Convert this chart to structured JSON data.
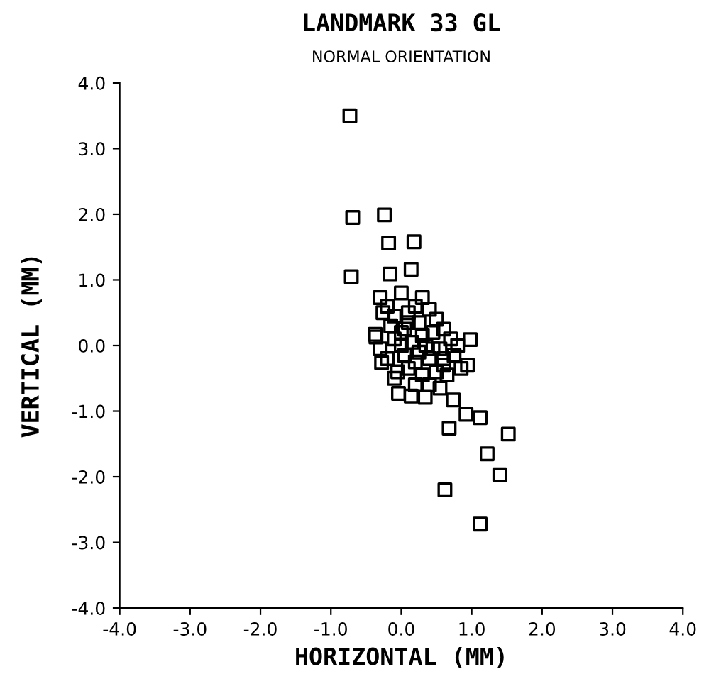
{
  "chart_data": {
    "type": "scatter",
    "title": "LANDMARK 33 GL",
    "subtitle": "NORMAL ORIENTATION",
    "xlabel": "HORIZONTAL (MM)",
    "ylabel": "VERTICAL (MM)",
    "xlim": [
      -4.0,
      4.0
    ],
    "ylim": [
      -4.0,
      4.0
    ],
    "xticks": [
      {
        "value": -4,
        "label": "-4.0"
      },
      {
        "value": -3,
        "label": "-3.0"
      },
      {
        "value": -2,
        "label": "-2.0"
      },
      {
        "value": -1,
        "label": "-1.0"
      },
      {
        "value": 0,
        "label": "0.0"
      },
      {
        "value": 1,
        "label": "1.0"
      },
      {
        "value": 2,
        "label": "2.0"
      },
      {
        "value": 3,
        "label": "3.0"
      },
      {
        "value": 4,
        "label": "4.0"
      }
    ],
    "yticks": [
      {
        "value": -4,
        "label": "-4.0"
      },
      {
        "value": -3,
        "label": "-3.0"
      },
      {
        "value": -2,
        "label": "-2.0"
      },
      {
        "value": -1,
        "label": "-1.0"
      },
      {
        "value": 0,
        "label": "0.0"
      },
      {
        "value": 1,
        "label": "1.0"
      },
      {
        "value": 2,
        "label": "2.0"
      },
      {
        "value": 3,
        "label": "3.0"
      },
      {
        "value": 4,
        "label": "4.0"
      }
    ],
    "marker": "square",
    "grid": false,
    "legend": false,
    "series": [
      {
        "color": "#000000",
        "x": [
          -0.73,
          -0.69,
          -0.24,
          -0.18,
          0.18,
          -0.71,
          -0.16,
          0.14,
          -0.36,
          -0.28,
          -0.04,
          0.14,
          0.34,
          0.74,
          0.68,
          0.92,
          1.12,
          1.52,
          1.22,
          1.4,
          0.62,
          1.12,
          0.98,
          0.94,
          -0.3,
          0.0,
          0.3,
          -0.26,
          -0.37,
          -0.2,
          -0.1,
          0.1,
          0.2,
          0.4,
          0.5,
          -0.15,
          0.05,
          0.25,
          0.45,
          0.6,
          0.7,
          -0.3,
          -0.1,
          0.0,
          0.15,
          0.35,
          0.55,
          0.8,
          -0.2,
          0.05,
          0.2,
          0.4,
          0.6,
          0.75,
          -0.05,
          0.1,
          0.3,
          0.5,
          0.65,
          0.2,
          0.4,
          0.55,
          0.1,
          0.3,
          0.45,
          0.6,
          -0.1,
          0.0,
          0.25,
          0.85
        ],
        "values": [
          3.5,
          1.95,
          1.99,
          1.56,
          1.58,
          1.05,
          1.09,
          1.16,
          0.13,
          -0.26,
          -0.73,
          -0.77,
          -0.79,
          -0.83,
          -1.26,
          -1.05,
          -1.1,
          -1.35,
          -1.65,
          -1.97,
          -2.2,
          -2.72,
          0.09,
          -0.3,
          0.73,
          0.8,
          0.73,
          0.5,
          0.17,
          0.6,
          0.45,
          0.5,
          0.6,
          0.55,
          0.4,
          0.3,
          0.25,
          0.35,
          0.2,
          0.25,
          0.1,
          -0.05,
          0.1,
          0.0,
          0.05,
          0.0,
          -0.05,
          0.0,
          -0.2,
          -0.15,
          -0.25,
          -0.2,
          -0.2,
          -0.15,
          -0.4,
          -0.35,
          -0.45,
          -0.4,
          -0.45,
          -0.6,
          -0.6,
          -0.65,
          0.35,
          0.15,
          -0.05,
          -0.3,
          -0.5,
          0.2,
          -0.1,
          -0.35
        ]
      }
    ]
  }
}
